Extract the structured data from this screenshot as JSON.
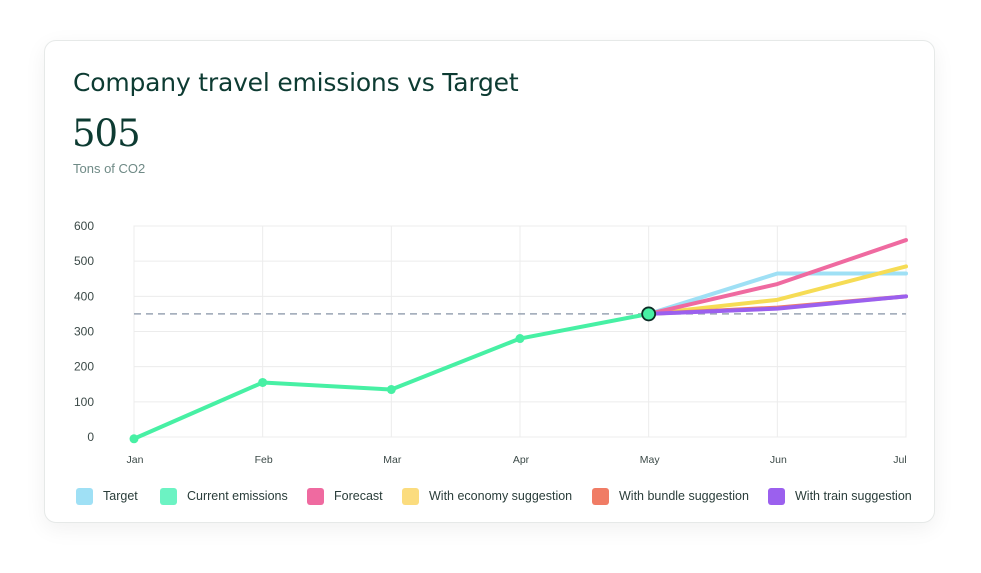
{
  "header": {
    "title": "Company travel emissions vs Target",
    "value": "505",
    "unit": "Tons of CO2"
  },
  "chart_data": {
    "type": "line",
    "x": [
      "Jan",
      "Feb",
      "Mar",
      "Apr",
      "May",
      "Jun",
      "Jul"
    ],
    "ylim": [
      0,
      600
    ],
    "y_ticks": [
      0,
      100,
      200,
      300,
      400,
      500,
      600
    ],
    "grid": true,
    "reference_line": {
      "value": 350,
      "style": "dashed",
      "color": "#9aa5b4"
    },
    "highlight_point": {
      "x": "May",
      "y": 350
    },
    "series": [
      {
        "name": "Current emissions",
        "color": "#47f0a4",
        "values": [
          -5,
          155,
          135,
          280,
          350,
          null,
          null
        ],
        "markers": true
      },
      {
        "name": "Target",
        "color": "#9fe0f5",
        "values": [
          null,
          null,
          null,
          null,
          350,
          465,
          465
        ]
      },
      {
        "name": "Forecast",
        "color": "#ef6aa0",
        "values": [
          null,
          null,
          null,
          null,
          350,
          435,
          560
        ]
      },
      {
        "name": "With economy suggestion",
        "color": "#f6dc55",
        "values": [
          null,
          null,
          null,
          null,
          350,
          390,
          485
        ]
      },
      {
        "name": "With bundle suggestion",
        "color": "#f07c65",
        "values": [
          null,
          null,
          null,
          null,
          350,
          368,
          400
        ]
      },
      {
        "name": "With train suggestion",
        "color": "#9b60ee",
        "values": [
          null,
          null,
          null,
          null,
          350,
          365,
          400
        ]
      }
    ]
  },
  "legend": [
    {
      "label": "Target",
      "color": "#9fe0f5"
    },
    {
      "label": "Current emissions",
      "color": "#6cf3c3"
    },
    {
      "label": "Forecast",
      "color": "#ef6aa0"
    },
    {
      "label": "With economy suggestion",
      "color": "#fbdc7e"
    },
    {
      "label": "With bundle suggestion",
      "color": "#f07c65"
    },
    {
      "label": "With train suggestion",
      "color": "#9b60ee"
    }
  ]
}
